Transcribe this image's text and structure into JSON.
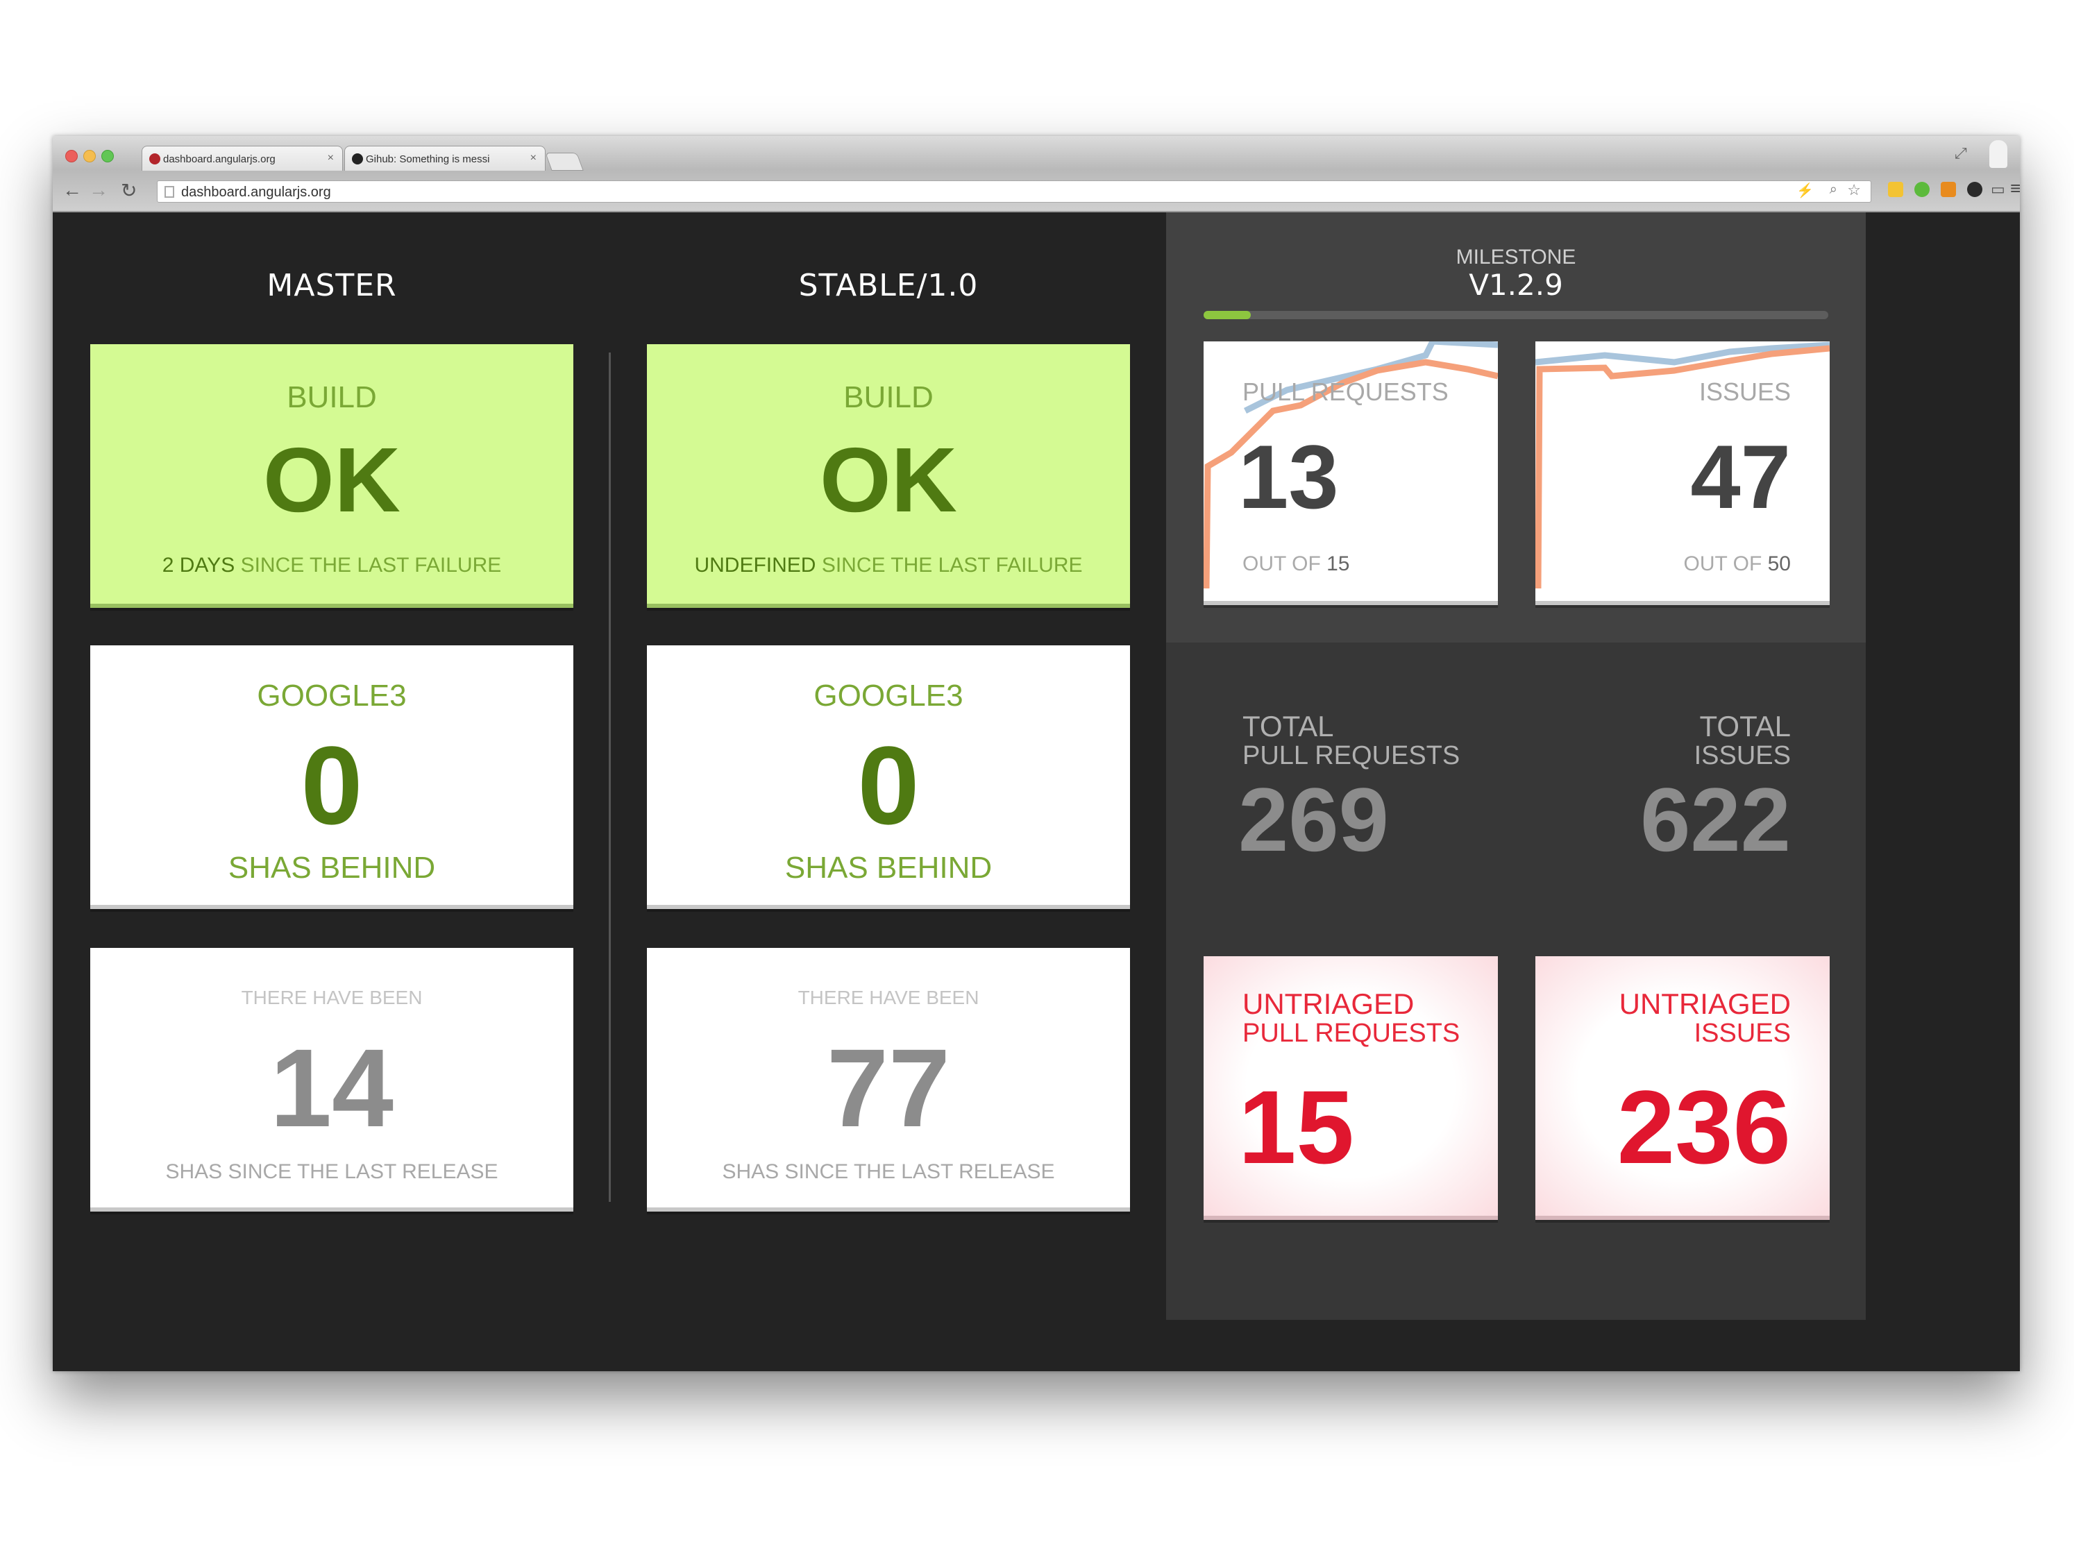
{
  "browser": {
    "tabs": [
      {
        "title": "dashboard.angularjs.org"
      },
      {
        "title": "Gihub: Something is messi"
      }
    ],
    "address": "dashboard.angularjs.org",
    "close_glyph": "×"
  },
  "columns": {
    "master": {
      "heading": "MASTER",
      "build": {
        "label": "BUILD",
        "status": "OK",
        "since_value": "2 DAYS",
        "since_text": "SINCE THE LAST FAILURE"
      },
      "google3": {
        "label": "GOOGLE3",
        "value": "0",
        "footer": "SHAS BEHIND"
      },
      "release": {
        "header": "THERE HAVE BEEN",
        "value": "14",
        "footer": "SHAS SINCE THE LAST RELEASE"
      }
    },
    "stable": {
      "heading": "STABLE/1.0",
      "build": {
        "label": "BUILD",
        "status": "OK",
        "since_value": "UNDEFINED",
        "since_text": "SINCE THE LAST FAILURE"
      },
      "google3": {
        "label": "GOOGLE3",
        "value": "0",
        "footer": "SHAS BEHIND"
      },
      "release": {
        "header": "THERE HAVE BEEN",
        "value": "77",
        "footer": "SHAS SINCE THE LAST RELEASE"
      }
    }
  },
  "milestone": {
    "label": "MILESTONE",
    "version": "V1.2.9",
    "progress_fraction": 0.075,
    "pull_requests": {
      "label": "PULL REQUESTS",
      "value": "13",
      "out_of_label": "OUT OF",
      "out_of_value": "15"
    },
    "issues": {
      "label": "ISSUES",
      "value": "47",
      "out_of_label": "OUT OF",
      "out_of_value": "50"
    }
  },
  "totals": {
    "pull_requests": {
      "label_top": "TOTAL",
      "label_bottom": "PULL REQUESTS",
      "value": "269"
    },
    "issues": {
      "label_top": "TOTAL",
      "label_bottom": "ISSUES",
      "value": "622"
    }
  },
  "untriaged": {
    "pull_requests": {
      "label_top": "UNTRIAGED",
      "label_bottom": "PULL REQUESTS",
      "value": "15"
    },
    "issues": {
      "label_top": "UNTRIAGED",
      "label_bottom": "ISSUES",
      "value": "236"
    }
  },
  "colors": {
    "build_ok_bg": "#d4fa93",
    "dark_green": "#4f7a12",
    "light_green": "#7aa835",
    "grey_number": "#8c8c8c",
    "untriaged_red": "#e8283a",
    "progress_green": "#8dc63f",
    "chart_orange": "#f5a07a",
    "chart_blue": "#a8c4dc"
  }
}
